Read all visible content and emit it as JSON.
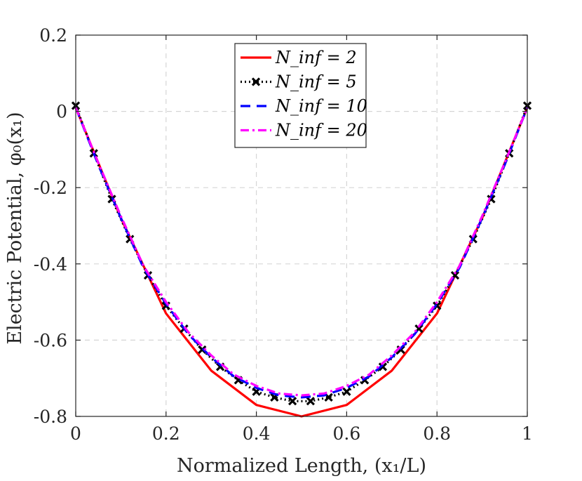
{
  "chart_data": {
    "type": "line",
    "xlabel": "Normalized Length, (x₁/L)",
    "ylabel": "Electric Potential, φ₀(x₁)",
    "xlim": [
      0,
      1
    ],
    "ylim": [
      -0.8,
      0.2
    ],
    "xticks": [
      0,
      0.2,
      0.4,
      0.6,
      0.8,
      1
    ],
    "xtick_labels": [
      "0",
      "0.2",
      "0.4",
      "0.6",
      "0.8",
      "1"
    ],
    "yticks": [
      -0.8,
      -0.6,
      -0.4,
      -0.2,
      0,
      0.2
    ],
    "ytick_labels": [
      "-0.8",
      "-0.6",
      "-0.4",
      "-0.2",
      "0",
      "0.2"
    ],
    "grid": true,
    "legend_position": "top-center",
    "series": [
      {
        "name": "N_inf = 2",
        "legend": "N_inf = 2",
        "color": "#ff0000",
        "style": "solid",
        "x": [
          0,
          0.1,
          0.2,
          0.3,
          0.4,
          0.5,
          0.6,
          0.7,
          0.8,
          0.9,
          1.0
        ],
        "values": [
          0.01,
          -0.28,
          -0.53,
          -0.68,
          -0.77,
          -0.8,
          -0.77,
          -0.68,
          -0.53,
          -0.28,
          0.01
        ]
      },
      {
        "name": "N_inf = 5",
        "legend": "N_inf = 5",
        "color": "#000000",
        "style": "dotted-x",
        "x": [
          0,
          0.04,
          0.08,
          0.12,
          0.16,
          0.2,
          0.24,
          0.28,
          0.32,
          0.36,
          0.4,
          0.44,
          0.48,
          0.52,
          0.56,
          0.6,
          0.64,
          0.68,
          0.72,
          0.76,
          0.8,
          0.84,
          0.88,
          0.92,
          0.96,
          1.0
        ],
        "values": [
          0.015,
          -0.11,
          -0.23,
          -0.335,
          -0.43,
          -0.51,
          -0.57,
          -0.625,
          -0.67,
          -0.705,
          -0.735,
          -0.75,
          -0.76,
          -0.76,
          -0.75,
          -0.735,
          -0.705,
          -0.67,
          -0.625,
          -0.57,
          -0.51,
          -0.43,
          -0.335,
          -0.23,
          -0.11,
          0.015
        ]
      },
      {
        "name": "N_inf = 10",
        "legend": "N_inf = 10",
        "color": "#0000ff",
        "style": "dashed",
        "x": [
          0,
          0.05,
          0.1,
          0.15,
          0.2,
          0.25,
          0.3,
          0.35,
          0.4,
          0.45,
          0.5,
          0.55,
          0.6,
          0.65,
          0.7,
          0.75,
          0.8,
          0.85,
          0.9,
          0.95,
          1.0
        ],
        "values": [
          0.01,
          -0.14,
          -0.28,
          -0.41,
          -0.505,
          -0.585,
          -0.645,
          -0.695,
          -0.725,
          -0.745,
          -0.75,
          -0.745,
          -0.725,
          -0.695,
          -0.645,
          -0.585,
          -0.505,
          -0.41,
          -0.28,
          -0.14,
          0.01
        ]
      },
      {
        "name": "N_inf = 20",
        "legend": "N_inf = 20",
        "color": "#ff00ff",
        "style": "dashdot",
        "x": [
          0,
          0.05,
          0.1,
          0.15,
          0.2,
          0.25,
          0.3,
          0.35,
          0.4,
          0.45,
          0.5,
          0.55,
          0.6,
          0.65,
          0.7,
          0.75,
          0.8,
          0.85,
          0.9,
          0.95,
          1.0
        ],
        "values": [
          0.01,
          -0.135,
          -0.275,
          -0.405,
          -0.5,
          -0.58,
          -0.64,
          -0.69,
          -0.72,
          -0.74,
          -0.745,
          -0.74,
          -0.72,
          -0.69,
          -0.64,
          -0.58,
          -0.5,
          -0.405,
          -0.275,
          -0.135,
          0.01
        ]
      }
    ]
  }
}
